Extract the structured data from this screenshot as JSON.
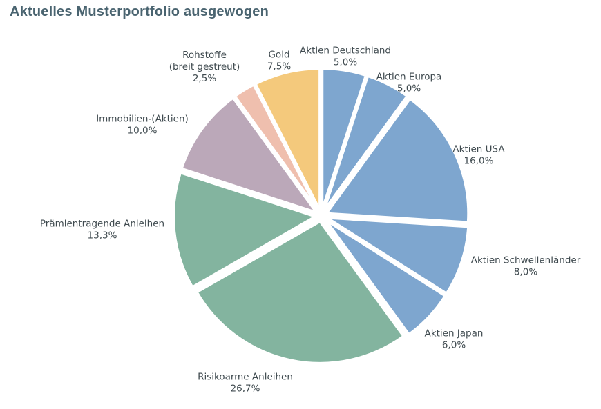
{
  "title": "Aktuelles Musterportfolio ausgewogen",
  "chart_data": {
    "type": "pie",
    "title": "Aktuelles Musterportfolio ausgewogen",
    "start": "12 o'clock",
    "direction": "clockwise",
    "exploded": true,
    "slices": [
      {
        "name": "Aktien Deutschland",
        "lines": [
          "Aktien Deutschland"
        ],
        "value": 5.0,
        "label": "5,0%",
        "color": "#7ea6cf"
      },
      {
        "name": "Aktien Europa",
        "lines": [
          "Aktien Europa"
        ],
        "value": 5.0,
        "label": "5,0%",
        "color": "#7ea6cf"
      },
      {
        "name": "Aktien USA",
        "lines": [
          "Aktien USA"
        ],
        "value": 16.0,
        "label": "16,0%",
        "color": "#7ea6cf"
      },
      {
        "name": "Aktien Schwellenländer",
        "lines": [
          "Aktien Schwellenländer"
        ],
        "value": 8.0,
        "label": "8,0%",
        "color": "#7ea6cf"
      },
      {
        "name": "Aktien Japan",
        "lines": [
          "Aktien Japan"
        ],
        "value": 6.0,
        "label": "6,0%",
        "color": "#7ea6cf"
      },
      {
        "name": "Risikoarme Anleihen",
        "lines": [
          "Risikoarme Anleihen"
        ],
        "value": 26.7,
        "label": "26,7%",
        "color": "#83b49f"
      },
      {
        "name": "Prämientragende Anleihen",
        "lines": [
          "Prämientragende Anleihen"
        ],
        "value": 13.3,
        "label": "13,3%",
        "color": "#83b49f"
      },
      {
        "name": "Immobilien-(Aktien)",
        "lines": [
          "Immobilien-(Aktien)"
        ],
        "value": 10.0,
        "label": "10,0%",
        "color": "#bba8b9"
      },
      {
        "name": "Rohstoffe (breit gestreut)",
        "lines": [
          "Rohstoffe",
          "(breit gestreut)"
        ],
        "value": 2.5,
        "label": "2,5%",
        "color": "#efbfae"
      },
      {
        "name": "Gold",
        "lines": [
          "Gold"
        ],
        "value": 7.5,
        "label": "7,5%",
        "color": "#f4c97c"
      }
    ]
  }
}
